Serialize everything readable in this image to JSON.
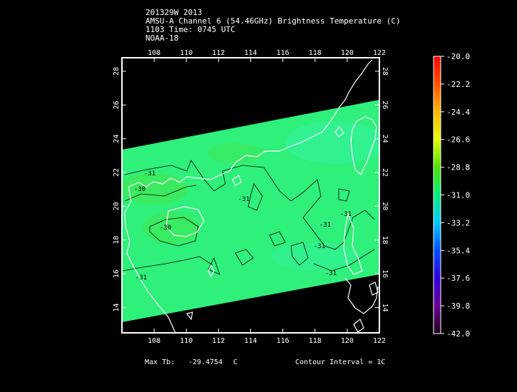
{
  "header": {
    "line1": "201329W 2013",
    "line2": "AMSU-A Channel 6 (54.46GHz) Brightness Temperature (C)",
    "line3": "1103 Time: 0745 UTC",
    "line4": "NOAA-18"
  },
  "map": {
    "lon_range": [
      106,
      122
    ],
    "lat_range": [
      12.5,
      28.8
    ],
    "lon_ticks": [
      "108",
      "110",
      "112",
      "114",
      "116",
      "118",
      "120",
      "122"
    ],
    "lat_ticks": [
      "14",
      "16",
      "18",
      "20",
      "22",
      "24",
      "26",
      "28"
    ],
    "contour_labels": [
      "-31",
      "-30",
      "-31",
      "-31",
      "-31",
      "-31",
      "-31",
      "-30",
      "-31"
    ],
    "colors": {
      "swath_main": "#2ef07a",
      "swath_warm": "#3ee85a",
      "swath_cool": "#33f2a0",
      "coast": "#ffffff",
      "contour": "#000000"
    }
  },
  "colorbar": {
    "labels": [
      "-20.0",
      "-22.2",
      "-24.4",
      "-26.6",
      "-28.8",
      "-31.0",
      "-33.2",
      "-35.4",
      "-37.6",
      "-39.8",
      "-42.0"
    ]
  },
  "footer": {
    "max_tb_label": "Max Tb:",
    "max_tb_value": "-29.4754",
    "max_tb_unit": "C",
    "contour_interval": "Contour Interval = 1C"
  }
}
